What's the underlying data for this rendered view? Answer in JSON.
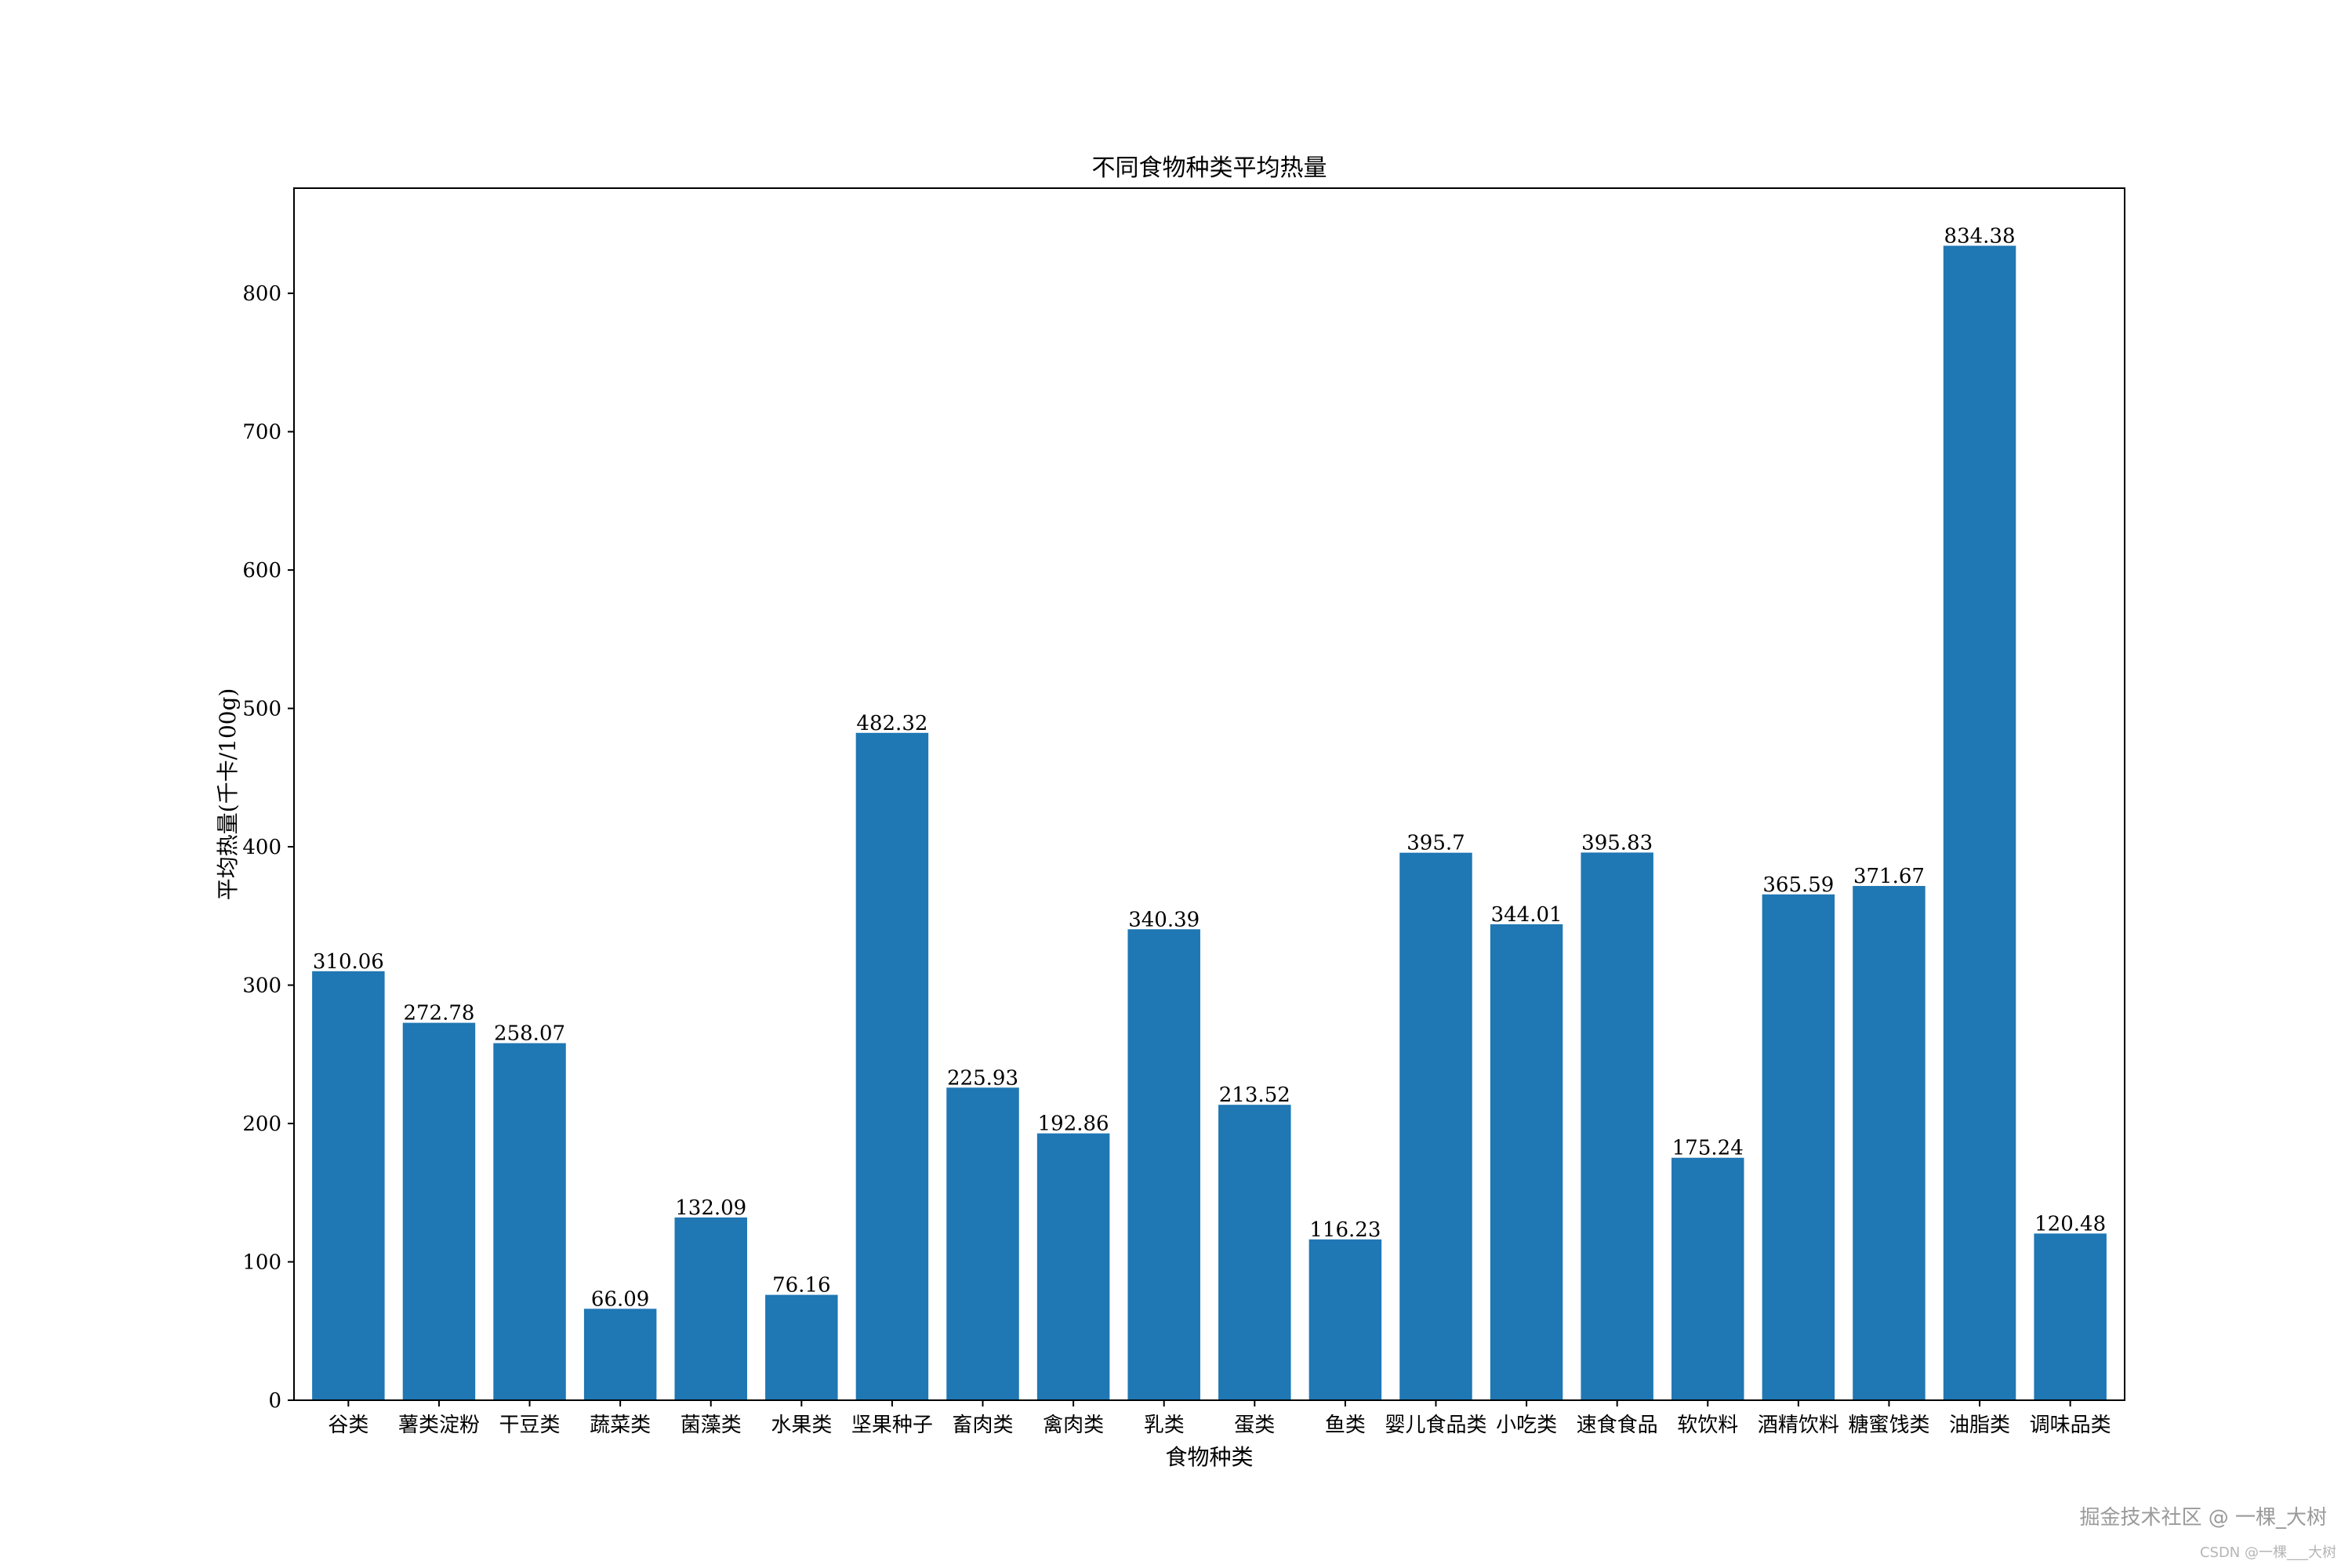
{
  "chart_data": {
    "type": "bar",
    "title": "不同食物种类平均热量",
    "xlabel": "食物种类",
    "ylabel": "平均热量(千卡/100g)",
    "categories": [
      "谷类",
      "薯类淀粉",
      "干豆类",
      "蔬菜类",
      "菌藻类",
      "水果类",
      "坚果种子",
      "畜肉类",
      "禽肉类",
      "乳类",
      "蛋类",
      "鱼类",
      "婴儿食品类",
      "小吃类",
      "速食食品",
      "软饮料",
      "酒精饮料",
      "糖蜜饯类",
      "油脂类",
      "调味品类"
    ],
    "values": [
      310.06,
      272.78,
      258.07,
      66.09,
      132.09,
      76.16,
      482.32,
      225.93,
      192.86,
      340.39,
      213.52,
      116.23,
      395.7,
      344.01,
      395.83,
      175.24,
      365.59,
      371.67,
      834.38,
      120.48
    ],
    "value_labels": [
      "310.06",
      "272.78",
      "258.07",
      "66.09",
      "132.09",
      "76.16",
      "482.32",
      "225.93",
      "192.86",
      "340.39",
      "213.52",
      "116.23",
      "395.7",
      "344.01",
      "395.83",
      "175.24",
      "365.59",
      "371.67",
      "834.38",
      "120.48"
    ],
    "yticks": [
      0,
      100,
      200,
      300,
      400,
      500,
      600,
      700,
      800
    ],
    "ylim": [
      0,
      876
    ],
    "bar_color": "#1f77b4",
    "grid": false,
    "legend": "none"
  },
  "watermark": {
    "line1": "掘金技术社区 @ 一棵_大树",
    "line2": "CSDN @一棵___大树"
  }
}
